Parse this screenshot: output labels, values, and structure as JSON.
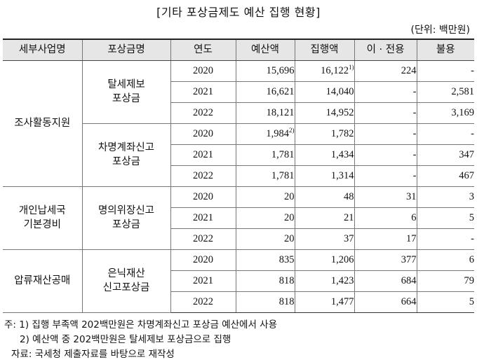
{
  "title": "[기타 포상금제도 예산 집행 현황]",
  "unit": "(단위: 백만원)",
  "headers": [
    "세부사업명",
    "포상금명",
    "연도",
    "예산액",
    "집행액",
    "이 · 전용",
    "불용"
  ],
  "groups": [
    {
      "project": "조사활동지원",
      "awards": [
        {
          "name": "탈세제보 포상금",
          "rows": [
            {
              "year": "2020",
              "budget": "15,696",
              "budget_note": "",
              "exec": "16,122",
              "exec_note": "1)",
              "transfer": "224",
              "unused": "-"
            },
            {
              "year": "2021",
              "budget": "16,621",
              "budget_note": "",
              "exec": "14,040",
              "exec_note": "",
              "transfer": "-",
              "unused": "2,581"
            },
            {
              "year": "2022",
              "budget": "18,121",
              "budget_note": "",
              "exec": "14,952",
              "exec_note": "",
              "transfer": "-",
              "unused": "3,169"
            }
          ]
        },
        {
          "name": "차명계좌신고 포상금",
          "rows": [
            {
              "year": "2020",
              "budget": "1,984",
              "budget_note": "2)",
              "exec": "1,782",
              "exec_note": "",
              "transfer": "-",
              "unused": "-"
            },
            {
              "year": "2021",
              "budget": "1,781",
              "budget_note": "",
              "exec": "1,434",
              "exec_note": "",
              "transfer": "-",
              "unused": "347"
            },
            {
              "year": "2022",
              "budget": "1,781",
              "budget_note": "",
              "exec": "1,314",
              "exec_note": "",
              "transfer": "-",
              "unused": "467"
            }
          ]
        }
      ]
    },
    {
      "project": "개인납세국 기본경비",
      "awards": [
        {
          "name": "명의위장신고 포상금",
          "rows": [
            {
              "year": "2020",
              "budget": "20",
              "budget_note": "",
              "exec": "48",
              "exec_note": "",
              "transfer": "31",
              "unused": "3"
            },
            {
              "year": "2021",
              "budget": "20",
              "budget_note": "",
              "exec": "21",
              "exec_note": "",
              "transfer": "6",
              "unused": "5"
            },
            {
              "year": "2022",
              "budget": "20",
              "budget_note": "",
              "exec": "37",
              "exec_note": "",
              "transfer": "17",
              "unused": "-"
            }
          ]
        }
      ]
    },
    {
      "project": "압류재산공매",
      "awards": [
        {
          "name": "은닉재산 신고포상금",
          "rows": [
            {
              "year": "2020",
              "budget": "835",
              "budget_note": "",
              "exec": "1,206",
              "exec_note": "",
              "transfer": "377",
              "unused": "6"
            },
            {
              "year": "2021",
              "budget": "818",
              "budget_note": "",
              "exec": "1,423",
              "exec_note": "",
              "transfer": "684",
              "unused": "79"
            },
            {
              "year": "2022",
              "budget": "818",
              "budget_note": "",
              "exec": "1,477",
              "exec_note": "",
              "transfer": "664",
              "unused": "5"
            }
          ]
        }
      ]
    }
  ],
  "notes": [
    "주: 1) 집행 부족액 202백만원은 차명계좌신고 포상금 예산에서 사용",
    "2) 예산액 중 202백만원은 탈세제보 포상금으로 집행",
    "자료: 국세청 제출자료를 바탕으로 재작성"
  ]
}
